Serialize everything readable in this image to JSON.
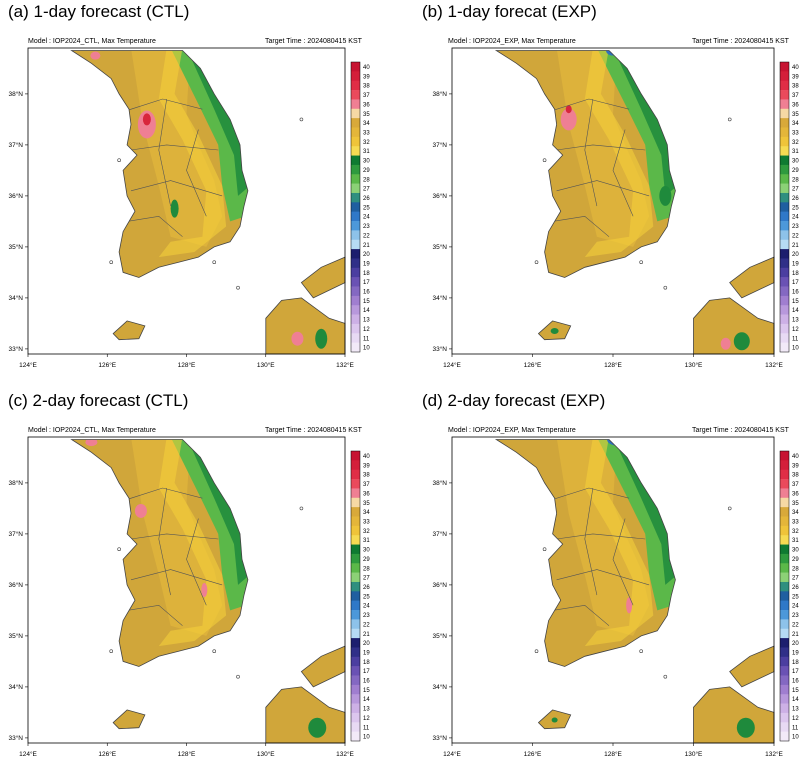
{
  "palette": {
    "land": "#d0a63a",
    "land_light": "#e8bc3c",
    "yellow": "#f5d13a",
    "green": "#5bb849",
    "dark_green": "#1f8a3c",
    "pink": "#ef7f93",
    "red": "#d8263c",
    "blue": "#2f6fbf"
  },
  "colorbar": {
    "labels": [
      "40",
      "39",
      "38",
      "37",
      "36",
      "35",
      "34",
      "33",
      "32",
      "31",
      "30",
      "29",
      "28",
      "27",
      "26",
      "25",
      "24",
      "23",
      "22",
      "21",
      "20",
      "19",
      "18",
      "17",
      "16",
      "15",
      "14",
      "13",
      "12",
      "11",
      "10"
    ],
    "colors": [
      "#c71432",
      "#d41f3a",
      "#e02e46",
      "#ea4a5c",
      "#ef7f93",
      "#f6d9a4",
      "#d8a93a",
      "#e4b63a",
      "#efc43a",
      "#f6db52",
      "#0e7a31",
      "#2e9a3e",
      "#5bb849",
      "#8cd176",
      "#2f8f7f",
      "#1f5fa0",
      "#2f78c8",
      "#4c98da",
      "#8dc2ea",
      "#b6dbf4",
      "#1c1e6e",
      "#302f88",
      "#4b3ea0",
      "#6a52b4",
      "#8468c2",
      "#a07ed0",
      "#b898dc",
      "#cdb0e6",
      "#dcc6ee",
      "#e8daf4",
      "#f2eaf8"
    ]
  },
  "panels": [
    {
      "title": "(a)  1-day forecast (CTL)",
      "model": "Model : IOP2024_CTL, Max Temperature",
      "target": "Target Time : 2024080415 KST"
    },
    {
      "title": "(b) 1-day forecat (EXP)",
      "model": "Model : IOP2024_EXP, Max Temperature",
      "target": "Target Time : 2024080415 KST"
    },
    {
      "title": "(c) 2-day forecast (CTL)",
      "model": "Model : IOP2024_CTL, Max Temperature",
      "target": "Target Time : 2024080415 KST"
    },
    {
      "title": "(d) 2-day forecast (EXP)",
      "model": "Model : IOP2024_EXP, Max Temperature",
      "target": "Target Time : 2024080415 KST"
    }
  ],
  "axes": {
    "lon_ticks": [
      "124°E",
      "126°E",
      "128°E",
      "130°E",
      "132°E"
    ],
    "lat_ticks": [
      "38°N",
      "37°N",
      "36°N",
      "35°N",
      "34°N",
      "33°N"
    ],
    "lon_range": [
      124,
      132
    ],
    "lat_range": [
      32.9,
      38.9
    ]
  }
}
